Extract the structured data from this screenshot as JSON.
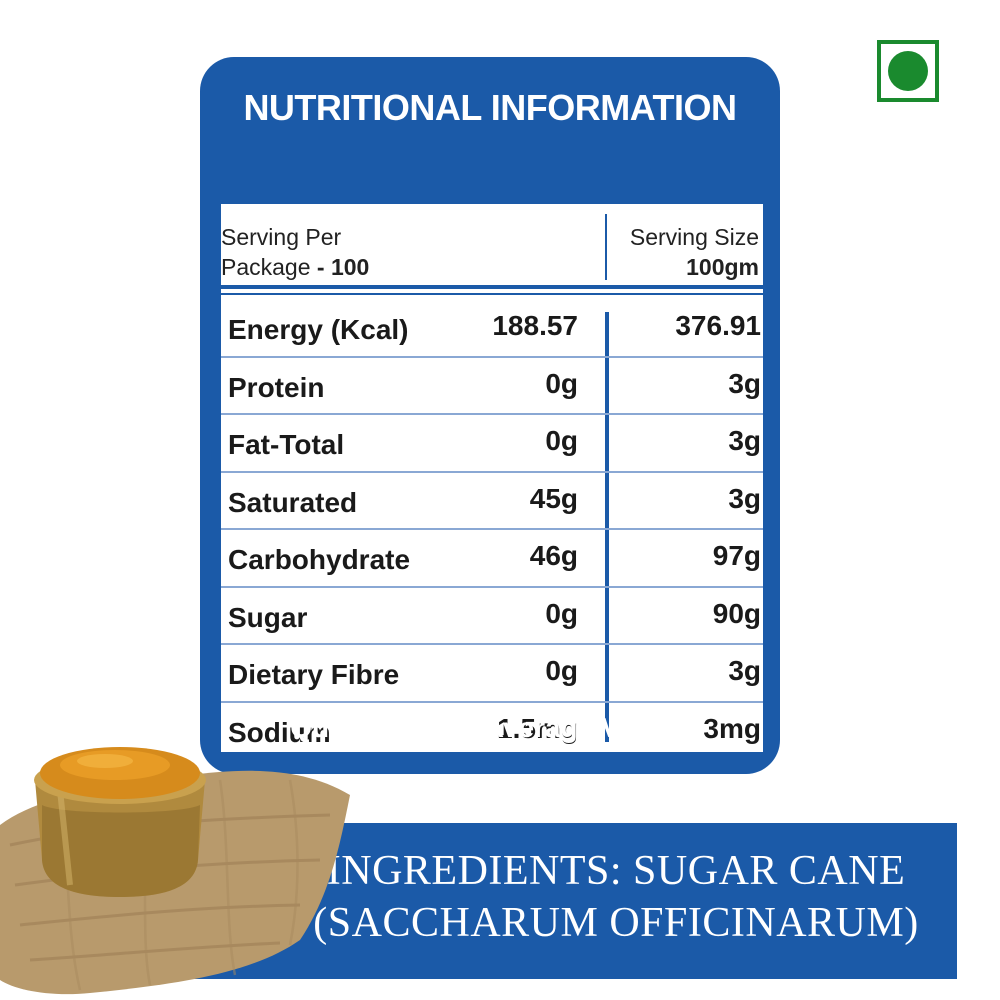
{
  "panel": {
    "title": "NUTRITIONAL INFORMATION",
    "serving_per_label": "Serving Per",
    "package_label": "Package",
    "package_value": "- 100",
    "serving_size_label": "Serving Size",
    "serving_size_value": "100gm",
    "rows": [
      {
        "name": "Energy (Kcal)",
        "v1": "188.57",
        "v2": "376.91"
      },
      {
        "name": "Protein",
        "v1": "0g",
        "v2": "3g"
      },
      {
        "name": "Fat-Total",
        "v1": "0g",
        "v2": "3g"
      },
      {
        "name": "Saturated",
        "v1": "45g",
        "v2": "3g"
      },
      {
        "name": "Carbohydrate",
        "v1": "46g",
        "v2": "97g"
      },
      {
        "name": "Sugar",
        "v1": "0g",
        "v2": "90g"
      },
      {
        "name": "Dietary Fibre",
        "v1": "0g",
        "v2": "3g"
      },
      {
        "name": "Sodium",
        "v1": "1.5mg",
        "v2": "3mg"
      }
    ],
    "footer": "Quantities are Average Values"
  },
  "ingredients": {
    "line1": "INGREDIENTS: SUGAR CANE",
    "line2": "(SACCHARUM OFFICINARUM)"
  },
  "colors": {
    "brand_blue": "#1b5aa8",
    "veg_green": "#1a8a2e"
  },
  "icons": {
    "veg_mark": "veg-symbol-icon"
  }
}
